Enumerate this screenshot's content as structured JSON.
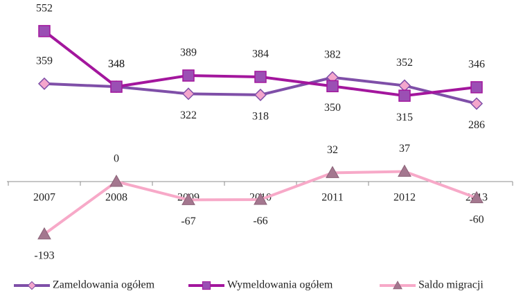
{
  "chart_data": {
    "type": "line",
    "categories": [
      "2007",
      "2008",
      "2009",
      "2010",
      "2011",
      "2012",
      "2013"
    ],
    "series": [
      {
        "name": "Zameldowania ogółem",
        "color": "#7f4fa8",
        "marker": "diamond",
        "marker_color": "#f4a6cc",
        "values": [
          359,
          348,
          322,
          318,
          382,
          352,
          286
        ]
      },
      {
        "name": "Wymeldowania ogółem",
        "color": "#a3169d",
        "marker": "square",
        "marker_color": "#9b4fb4",
        "values": [
          552,
          348,
          389,
          384,
          350,
          315,
          346
        ]
      },
      {
        "name": "Saldo migracji",
        "color": "#f7a9c8",
        "marker": "triangle",
        "marker_color": "#a4778f",
        "values": [
          -193,
          0,
          -67,
          -66,
          32,
          37,
          -60
        ]
      }
    ],
    "ylim": [
      -300,
      600
    ],
    "legend": "bottom"
  }
}
